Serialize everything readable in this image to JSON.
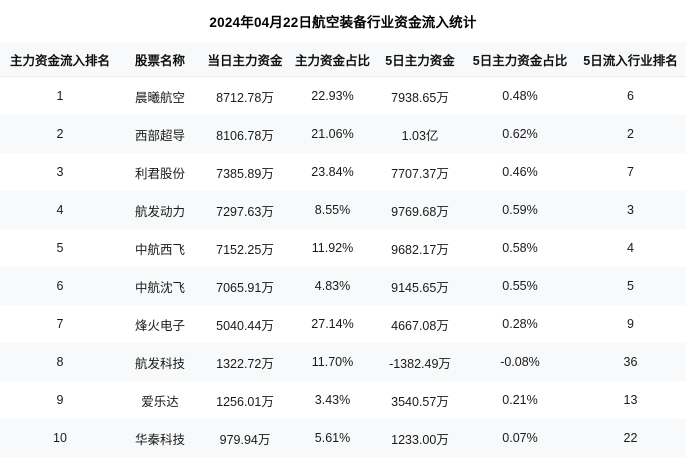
{
  "chart_data": {
    "type": "table",
    "title": "2024年04月22日航空装备行业资金流入统计",
    "columns": [
      "主力资金流入排名",
      "股票名称",
      "当日主力资金",
      "主力资金占比",
      "5日主力资金",
      "5日主力资金占比",
      "5日流入行业排名"
    ],
    "rows": [
      [
        "1",
        "晨曦航空",
        "8712.78万",
        "22.93%",
        "7938.65万",
        "0.48%",
        "6"
      ],
      [
        "2",
        "西部超导",
        "8106.78万",
        "21.06%",
        "1.03亿",
        "0.62%",
        "2"
      ],
      [
        "3",
        "利君股份",
        "7385.89万",
        "23.84%",
        "7707.37万",
        "0.46%",
        "7"
      ],
      [
        "4",
        "航发动力",
        "7297.63万",
        "8.55%",
        "9769.68万",
        "0.59%",
        "3"
      ],
      [
        "5",
        "中航西飞",
        "7152.25万",
        "11.92%",
        "9682.17万",
        "0.58%",
        "4"
      ],
      [
        "6",
        "中航沈飞",
        "7065.91万",
        "4.83%",
        "9145.65万",
        "0.55%",
        "5"
      ],
      [
        "7",
        "烽火电子",
        "5040.44万",
        "27.14%",
        "4667.08万",
        "0.28%",
        "9"
      ],
      [
        "8",
        "航发科技",
        "1322.72万",
        "11.70%",
        "-1382.49万",
        "-0.08%",
        "36"
      ],
      [
        "9",
        "爱乐达",
        "1256.01万",
        "3.43%",
        "3540.57万",
        "0.21%",
        "13"
      ],
      [
        "10",
        "华秦科技",
        "979.94万",
        "5.61%",
        "1233.00万",
        "0.07%",
        "22"
      ]
    ]
  },
  "colors": {
    "background": "#ffffff",
    "stripe": "#f8f9fa",
    "text": "#1a1a1a",
    "title_text": "#000000"
  }
}
